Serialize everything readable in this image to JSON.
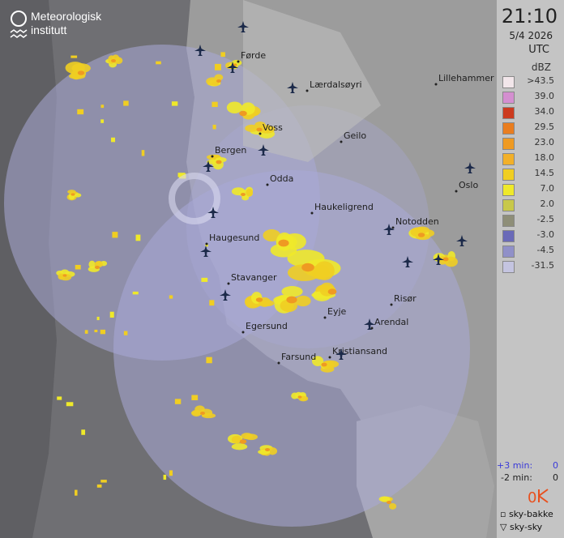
{
  "logo": {
    "line1": "Meteorologisk",
    "line2": "institutt"
  },
  "time": "21:10",
  "date": "5/4 2026",
  "timezone": "UTC",
  "legend": {
    "unit": "dBZ",
    "entries": [
      {
        "label": ">43.5",
        "color": "#f2e6ea"
      },
      {
        "label": "39.0",
        "color": "#d48fd0"
      },
      {
        "label": "34.0",
        "color": "#cc3a1e"
      },
      {
        "label": "29.5",
        "color": "#e97d1f"
      },
      {
        "label": "23.0",
        "color": "#ef9a22"
      },
      {
        "label": "18.0",
        "color": "#f2b029"
      },
      {
        "label": "14.5",
        "color": "#f0ce22"
      },
      {
        "label": "7.0",
        "color": "#efe92a"
      },
      {
        "label": "2.0",
        "color": "#c8c84a"
      },
      {
        "label": "-2.5",
        "color": "#8e8e78"
      },
      {
        "label": "-3.0",
        "color": "#6a6ab8"
      },
      {
        "label": "-4.5",
        "color": "#9090c8"
      },
      {
        "label": "-31.5",
        "color": "#c4c4e0"
      }
    ]
  },
  "lightning": {
    "plus": {
      "label": "+3 min:",
      "count": "0"
    },
    "minus": {
      "label": "-2 min:",
      "count": "0"
    },
    "total": "0"
  },
  "symbols": {
    "ground": "sky-bakke",
    "cloud": "sky-sky"
  },
  "places": [
    "Førde",
    "Lærdalsøyri",
    "Lillehammer",
    "Voss",
    "Geilo",
    "Bergen",
    "Odda",
    "Oslo",
    "Haukeligrend",
    "Notodden",
    "Haugesund",
    "Stavanger",
    "Risør",
    "Eyje",
    "Arendal",
    "Egersund",
    "Kristiansand",
    "Farsund"
  ]
}
